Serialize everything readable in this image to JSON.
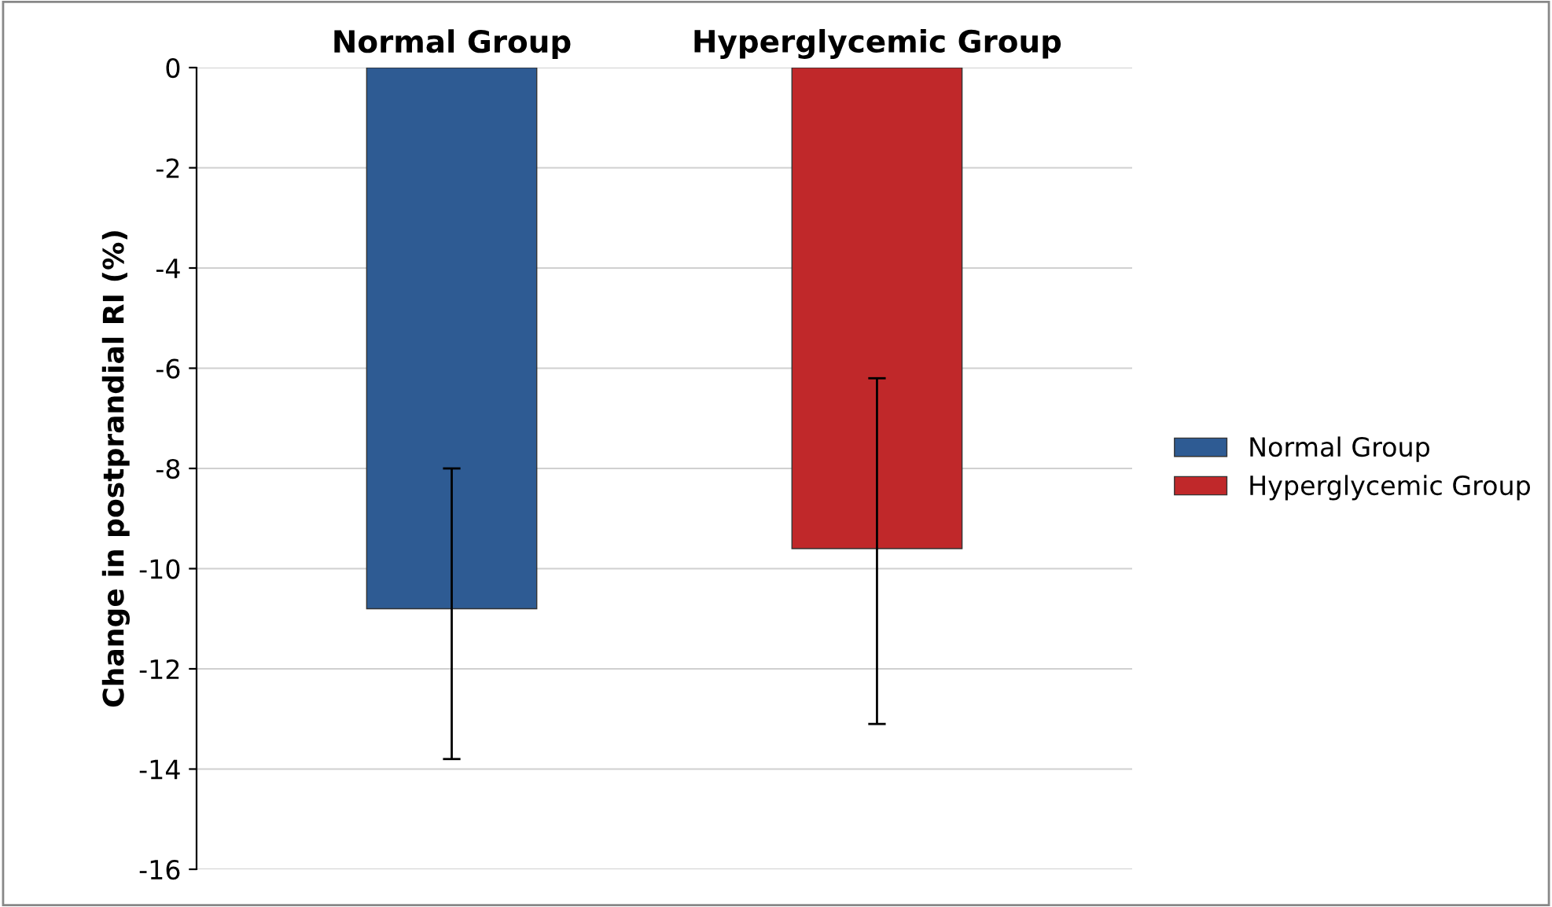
{
  "chart_data": {
    "type": "bar",
    "ylabel": "Change in postprandial RI (%)",
    "categories": [
      "Normal Group",
      "Hyperglycemic Group"
    ],
    "stacked": true,
    "series": [
      {
        "name": "Normal Group",
        "color": "#2e5b93",
        "values": [
          -10.8,
          null
        ],
        "errors": [
          [
            -13.8,
            -8.0
          ],
          null
        ]
      },
      {
        "name": "Hyperglycemic Group",
        "color": "#c0282a",
        "values": [
          null,
          -9.6
        ],
        "errors": [
          null,
          [
            -13.1,
            -6.2
          ]
        ]
      }
    ],
    "ylim": [
      -16,
      0
    ],
    "yticks": [
      -16,
      -14,
      -12,
      -10,
      -8,
      -6,
      -4,
      -2,
      0
    ],
    "grid": "y",
    "legend": "right"
  }
}
